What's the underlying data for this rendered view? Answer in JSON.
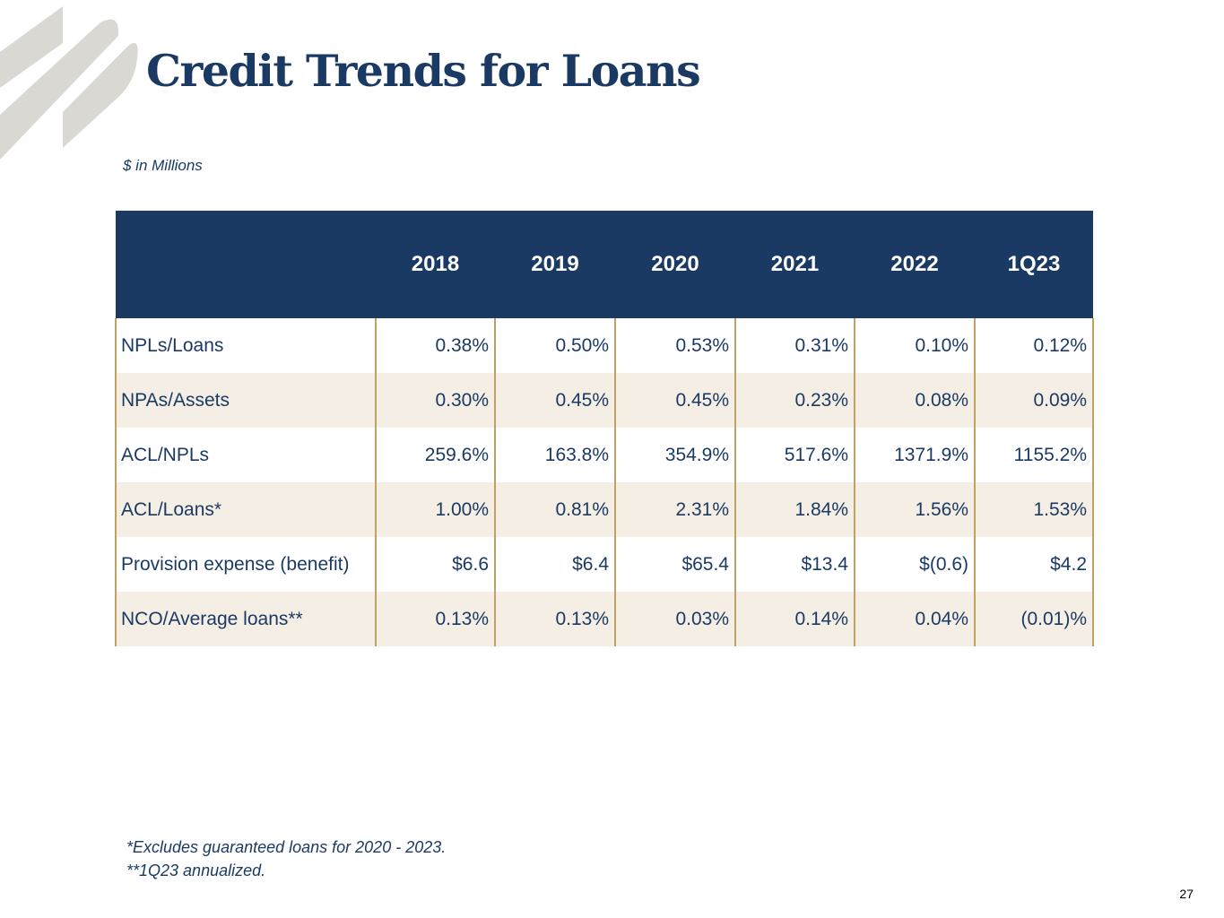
{
  "title": "Credit Trends for Loans",
  "units_note": "$ in Millions",
  "table": {
    "columns": [
      "",
      "2018",
      "2019",
      "2020",
      "2021",
      "2022",
      "1Q23"
    ],
    "rows": [
      {
        "label": "NPLs/Loans",
        "values": [
          "0.38%",
          "0.50%",
          "0.53%",
          "0.31%",
          "0.10%",
          "0.12%"
        ]
      },
      {
        "label": "NPAs/Assets",
        "values": [
          "0.30%",
          "0.45%",
          "0.45%",
          "0.23%",
          "0.08%",
          "0.09%"
        ]
      },
      {
        "label": "ACL/NPLs",
        "values": [
          "259.6%",
          "163.8%",
          "354.9%",
          "517.6%",
          "1371.9%",
          "1155.2%"
        ]
      },
      {
        "label": "ACL/Loans*",
        "values": [
          "1.00%",
          "0.81%",
          "2.31%",
          "1.84%",
          "1.56%",
          "1.53%"
        ]
      },
      {
        "label": "Provision expense (benefit)",
        "values": [
          "$6.6",
          "$6.4",
          "$65.4",
          "$13.4",
          "$(0.6)",
          "$4.2"
        ]
      },
      {
        "label": "NCO/Average loans**",
        "values": [
          "0.13%",
          "0.13%",
          "0.03%",
          "0.14%",
          "0.04%",
          "(0.01)%"
        ]
      }
    ]
  },
  "footnotes": [
    "*Excludes guaranteed loans for 2020 - 2023.",
    "**1Q23 annualized."
  ],
  "page_number": "27",
  "colors": {
    "navy": "#1b3a63",
    "gold": "#c1a064",
    "stripe": "#f5eee5",
    "logo_gray": "#d9d8d3"
  }
}
